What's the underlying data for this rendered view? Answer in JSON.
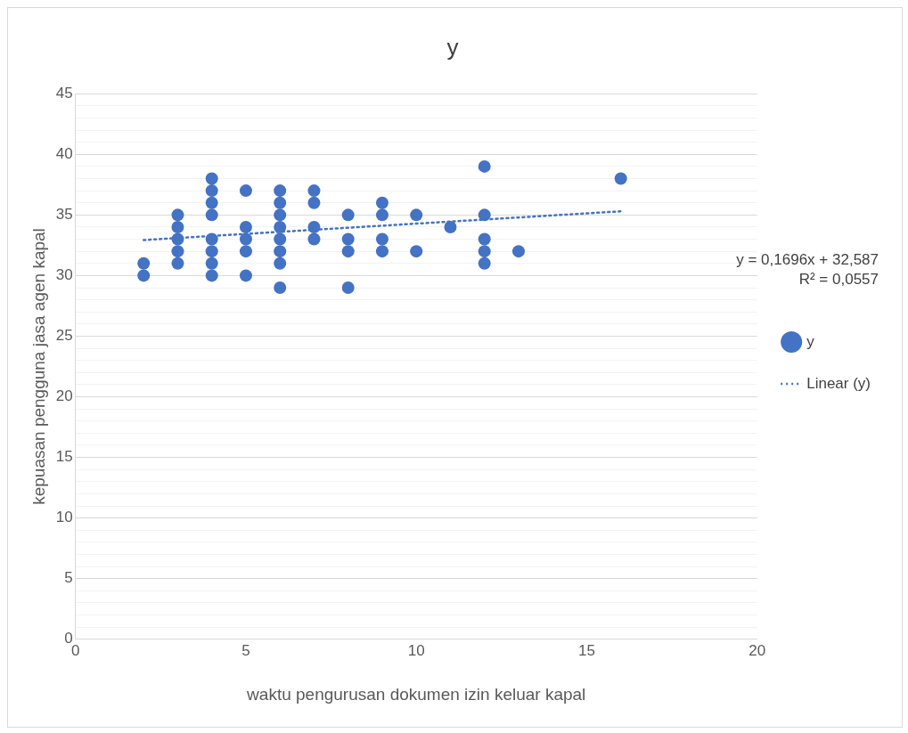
{
  "chart_data": {
    "type": "scatter",
    "title": "y",
    "xlabel": "waktu pengurusan dokumen izin keluar kapal",
    "ylabel": "kepuasan pengguna jasa agen kapal",
    "xlim": [
      0,
      20
    ],
    "xticks": [
      0,
      5,
      10,
      15,
      20
    ],
    "ylim": [
      0,
      45
    ],
    "yticks": [
      0,
      {
        "value": 1,
        "label": null
      },
      {
        "value": 2,
        "label": null
      },
      {
        "value": 3,
        "label": null
      },
      {
        "value": 4,
        "label": null
      },
      5,
      {
        "value": 6,
        "label": null
      },
      {
        "value": 7,
        "label": null
      },
      {
        "value": 8,
        "label": null
      },
      {
        "value": 9,
        "label": null
      },
      10,
      {
        "value": 11,
        "label": null
      },
      {
        "value": 12,
        "label": null
      },
      {
        "value": 13,
        "label": null
      },
      {
        "value": 14,
        "label": null
      },
      15,
      {
        "value": 16,
        "label": null
      },
      {
        "value": 17,
        "label": null
      },
      {
        "value": 18,
        "label": null
      },
      {
        "value": 19,
        "label": null
      },
      20,
      {
        "value": 21,
        "label": null
      },
      {
        "value": 22,
        "label": null
      },
      {
        "value": 23,
        "label": null
      },
      {
        "value": 24,
        "label": null
      },
      25,
      {
        "value": 26,
        "label": null
      },
      {
        "value": 27,
        "label": null
      },
      {
        "value": 28,
        "label": null
      },
      {
        "value": 29,
        "label": null
      },
      30,
      {
        "value": 31,
        "label": null
      },
      {
        "value": 32,
        "label": null
      },
      {
        "value": 33,
        "label": null
      },
      {
        "value": 34,
        "label": null
      },
      35,
      {
        "value": 36,
        "label": null
      },
      {
        "value": 37,
        "label": null
      },
      {
        "value": 38,
        "label": null
      },
      {
        "value": 39,
        "label": null
      },
      40,
      {
        "value": 41,
        "label": null
      },
      {
        "value": 42,
        "label": null
      },
      {
        "value": 43,
        "label": null
      },
      {
        "value": 44,
        "label": null
      },
      45
    ],
    "grid": "y",
    "legend": "right",
    "marker": "circle",
    "series": [
      {
        "name": "y",
        "color": "#4472c4",
        "x": [
          2,
          2,
          3,
          3,
          3,
          3,
          3,
          4,
          4,
          4,
          4,
          4,
          4,
          4,
          4,
          5,
          5,
          5,
          5,
          5,
          6,
          6,
          6,
          6,
          6,
          6,
          6,
          6,
          7,
          7,
          7,
          7,
          8,
          8,
          8,
          8,
          9,
          9,
          9,
          9,
          10,
          10,
          11,
          12,
          12,
          12,
          12,
          12,
          13,
          16
        ],
        "values": [
          30,
          31,
          31,
          32,
          33,
          34,
          35,
          30,
          31,
          32,
          33,
          35,
          36,
          37,
          38,
          30,
          32,
          33,
          34,
          37,
          29,
          31,
          32,
          33,
          34,
          35,
          36,
          37,
          33,
          34,
          36,
          37,
          29,
          32,
          33,
          35,
          32,
          33,
          35,
          36,
          32,
          35,
          34,
          31,
          32,
          33,
          35,
          39,
          32,
          38
        ]
      },
      {
        "name": "Linear (y)",
        "type": "line",
        "color": "#4472c4",
        "line_style": "dotted",
        "marker": "none",
        "x": [
          2,
          16
        ],
        "values": [
          32.93,
          35.3
        ]
      }
    ],
    "annotations": [
      "y = 0,1696x + 32,587",
      "R² = 0,0557"
    ]
  }
}
